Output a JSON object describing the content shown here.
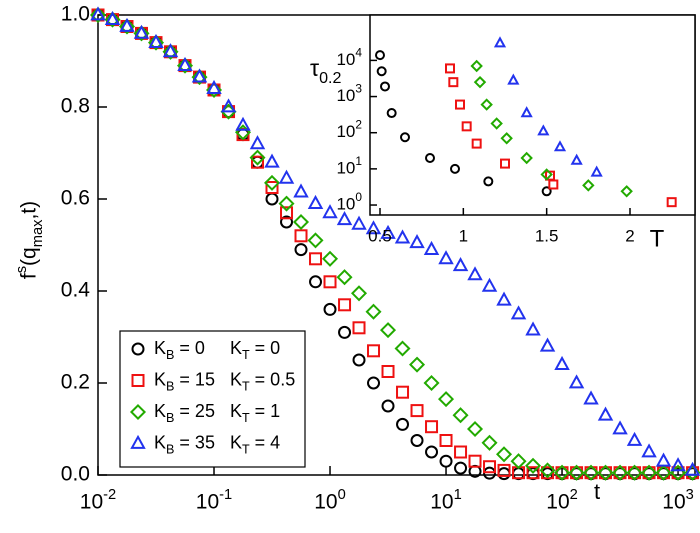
{
  "chart_data": [
    {
      "type": "scatter",
      "xlabel": "t",
      "ylabel": "f^{s}(q_{max},t)",
      "xlog": true,
      "legend": "lower left",
      "xlim": [
        0.01,
        1400
      ],
      "ylim": [
        0,
        1.0
      ],
      "xticks": [
        {
          "value": 0.01,
          "label": "10^{-2}"
        },
        {
          "value": 0.1,
          "label": "10^{-1}"
        },
        {
          "value": 1,
          "label": "10^{0}"
        },
        {
          "value": 10,
          "label": "10^{1}"
        },
        {
          "value": 100,
          "label": "10^{2}"
        },
        {
          "value": 1000,
          "label": "10^{3}"
        }
      ],
      "yticks": [
        {
          "value": 0,
          "label": "0.0"
        },
        0.2,
        0.4,
        0.6,
        0.8,
        {
          "value": 1.0,
          "label": "1.0"
        }
      ],
      "x": [
        0.01,
        0.01334,
        0.01778,
        0.02371,
        0.03162,
        0.04217,
        0.05623,
        0.07499,
        0.1,
        0.1334,
        0.1778,
        0.2371,
        0.3162,
        0.4217,
        0.5623,
        0.7499,
        1,
        1.334,
        1.778,
        2.371,
        3.162,
        4.217,
        5.623,
        7.499,
        10,
        13.34,
        17.78,
        23.71,
        31.62,
        42.17,
        56.23,
        74.99,
        100,
        133.4,
        177.8,
        237.1,
        316.2,
        421.7,
        562.3,
        749.9,
        1000,
        1334
      ],
      "series": [
        {
          "name": "K_{B} = 0     K_{T} = 0",
          "color": "#000000",
          "marker": "circle",
          "values": [
            1.0,
            0.99,
            0.975,
            0.96,
            0.94,
            0.92,
            0.89,
            0.865,
            0.837,
            0.79,
            0.74,
            0.68,
            0.6,
            0.55,
            0.49,
            0.42,
            0.36,
            0.31,
            0.25,
            0.2,
            0.15,
            0.11,
            0.075,
            0.05,
            0.03,
            0.015,
            0.008,
            0.004,
            0.003,
            0.003,
            0.003,
            0.003,
            0.003,
            0.003,
            0.003,
            0.003,
            0.003,
            0.003,
            0.003,
            0.003,
            0.003,
            0.003
          ]
        },
        {
          "name": "K_{B} = 15   K_{T} = 0.5",
          "color": "#ee1111",
          "marker": "square",
          "values": [
            1.0,
            0.99,
            0.975,
            0.96,
            0.94,
            0.92,
            0.89,
            0.865,
            0.837,
            0.79,
            0.74,
            0.68,
            0.625,
            0.57,
            0.52,
            0.47,
            0.42,
            0.37,
            0.32,
            0.27,
            0.225,
            0.18,
            0.14,
            0.105,
            0.075,
            0.05,
            0.03,
            0.018,
            0.01,
            0.005,
            0.005,
            0.005,
            0.005,
            0.005,
            0.005,
            0.005,
            0.005,
            0.005,
            0.005,
            0.005,
            0.005,
            0.005
          ]
        },
        {
          "name": "K_{B} = 25   K_{T} = 1",
          "color": "#22aa00",
          "marker": "diamond",
          "values": [
            1.0,
            0.99,
            0.975,
            0.96,
            0.94,
            0.92,
            0.89,
            0.865,
            0.837,
            0.79,
            0.745,
            0.69,
            0.635,
            0.59,
            0.55,
            0.51,
            0.47,
            0.43,
            0.395,
            0.355,
            0.315,
            0.275,
            0.24,
            0.2,
            0.165,
            0.13,
            0.1,
            0.07,
            0.045,
            0.03,
            0.02,
            0.01,
            0.005,
            0.005,
            0.005,
            0.005,
            0.005,
            0.005,
            0.005,
            0.005,
            0.005,
            0.005
          ]
        },
        {
          "name": "K_{B} = 35   K_{T} = 4",
          "color": "#2233ee",
          "marker": "triangle",
          "values": [
            1.0,
            0.99,
            0.975,
            0.96,
            0.94,
            0.92,
            0.89,
            0.865,
            0.84,
            0.8,
            0.76,
            0.72,
            0.68,
            0.645,
            0.615,
            0.59,
            0.57,
            0.555,
            0.545,
            0.535,
            0.525,
            0.515,
            0.505,
            0.49,
            0.47,
            0.455,
            0.435,
            0.41,
            0.38,
            0.35,
            0.315,
            0.28,
            0.24,
            0.2,
            0.165,
            0.13,
            0.1,
            0.075,
            0.05,
            0.03,
            0.02,
            0.01
          ]
        }
      ]
    },
    {
      "type": "scatter",
      "xlabel": "T",
      "ylabel": "τ_{0.2}",
      "ylog": true,
      "xlim": [
        0.44,
        2.39
      ],
      "ylim": [
        0.53,
        180000
      ],
      "xticks": [
        0.5,
        1,
        1.5,
        2
      ],
      "yticks": [
        {
          "value": 1,
          "label": "10^{0}"
        },
        {
          "value": 10,
          "label": "10^{1}"
        },
        {
          "value": 100,
          "label": "10^{2}"
        },
        {
          "value": 1000,
          "label": "10^{3}"
        },
        {
          "value": 10000,
          "label": "10^{4}"
        }
      ],
      "series": [
        {
          "color": "#000000",
          "marker": "circle",
          "x": [
            0.5,
            0.51,
            0.53,
            0.57,
            0.65,
            0.8,
            0.95,
            1.15,
            1.5
          ],
          "values": [
            14000,
            5000,
            1900,
            350,
            75,
            20,
            10,
            4.5,
            2.4
          ]
        },
        {
          "color": "#ee1111",
          "marker": "square",
          "x": [
            0.92,
            0.94,
            0.98,
            1.02,
            1.08,
            1.25,
            1.52,
            1.54,
            2.25
          ],
          "values": [
            6000,
            2500,
            600,
            150,
            50,
            14,
            6.5,
            3.7,
            1.2
          ]
        },
        {
          "color": "#22aa00",
          "marker": "diamond",
          "x": [
            1.08,
            1.1,
            1.14,
            1.2,
            1.26,
            1.38,
            1.5,
            1.75,
            1.98
          ],
          "values": [
            7000,
            2500,
            600,
            180,
            70,
            20,
            7,
            3.5,
            2.4
          ]
        },
        {
          "color": "#2233ee",
          "marker": "triangle",
          "x": [
            1.22,
            1.3,
            1.38,
            1.48,
            1.58,
            1.68,
            1.8
          ],
          "values": [
            30000,
            2800,
            350,
            110,
            40,
            17,
            8
          ]
        }
      ]
    }
  ]
}
